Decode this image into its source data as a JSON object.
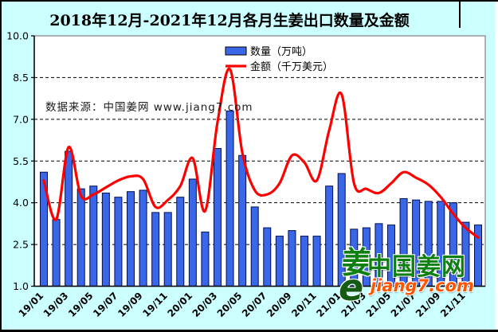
{
  "title": "2018年12月-2021年12月各月生姜出口数量及金额",
  "watermark": "数据来源：中国姜网 www.jiang7.com",
  "colors": {
    "background": "#ccffff",
    "plot_background": "#ffffff",
    "bar_fill": "#3a66e8",
    "bar_stroke": "#001050",
    "line_color": "#ff0000",
    "grid_color": "#000000",
    "plot_border": "#808080",
    "logo_green": "#0e8012",
    "logo_orange": "#ff5500"
  },
  "legend": {
    "bar_label": "数量（万吨）",
    "line_label": "金额（千万美元）"
  },
  "logo": {
    "mark_glyph": "姜",
    "e_glyph": "e",
    "name": "中国姜网",
    "site": "jiang7.com"
  },
  "chart_data": {
    "type": "bar+line",
    "title": "2018年12月-2021年12月各月生姜出口数量及金额",
    "categories": [
      "19/01",
      "19/02",
      "19/03",
      "19/04",
      "19/05",
      "19/06",
      "19/07",
      "19/08",
      "19/09",
      "19/10",
      "19/11",
      "19/12",
      "20/01",
      "20/02",
      "20/03",
      "20/04",
      "20/05",
      "20/06",
      "20/07",
      "20/08",
      "20/09",
      "20/10",
      "20/11",
      "20/12",
      "21/01",
      "21/02",
      "21/03",
      "21/04",
      "21/05",
      "21/06",
      "21/07",
      "21/08",
      "21/09",
      "21/10",
      "21/11",
      "21/12"
    ],
    "x_tick_labels_shown": [
      "19/01",
      "19/03",
      "19/05",
      "19/07",
      "19/09",
      "19/11",
      "20/01",
      "20/03",
      "20/05",
      "20/07",
      "20/09",
      "20/11",
      "21/01",
      "21/03",
      "21/05",
      "21/07",
      "21/09",
      "21/11"
    ],
    "series": [
      {
        "name": "数量（万吨）",
        "type": "bar",
        "color": "#3a66e8",
        "values": [
          5.1,
          3.4,
          5.85,
          4.5,
          4.6,
          4.35,
          4.2,
          4.4,
          4.45,
          3.65,
          3.65,
          4.2,
          4.85,
          2.95,
          5.95,
          7.3,
          5.7,
          3.85,
          3.1,
          2.8,
          3.0,
          2.8,
          2.8,
          4.6,
          5.05,
          3.05,
          3.1,
          3.25,
          3.2,
          4.15,
          4.1,
          4.05,
          4.05,
          4.0,
          3.3,
          3.2
        ]
      },
      {
        "name": "金额（千万美元）",
        "type": "line",
        "color": "#ff0000",
        "values": [
          4.8,
          3.4,
          6.0,
          4.25,
          4.3,
          4.55,
          4.8,
          4.95,
          4.85,
          3.85,
          4.1,
          4.6,
          5.6,
          3.7,
          6.9,
          8.8,
          5.8,
          4.45,
          4.3,
          4.7,
          5.7,
          5.45,
          4.8,
          6.6,
          7.9,
          4.7,
          4.5,
          4.35,
          4.7,
          5.1,
          4.9,
          4.65,
          4.2,
          3.6,
          3.1,
          2.75
        ]
      }
    ],
    "ylim": [
      1.0,
      10.0
    ],
    "yticks": [
      1.0,
      2.5,
      4.0,
      5.5,
      7.0,
      8.5,
      10.0
    ],
    "grid": "horizontal-dashed",
    "legend_position": "top-center"
  }
}
